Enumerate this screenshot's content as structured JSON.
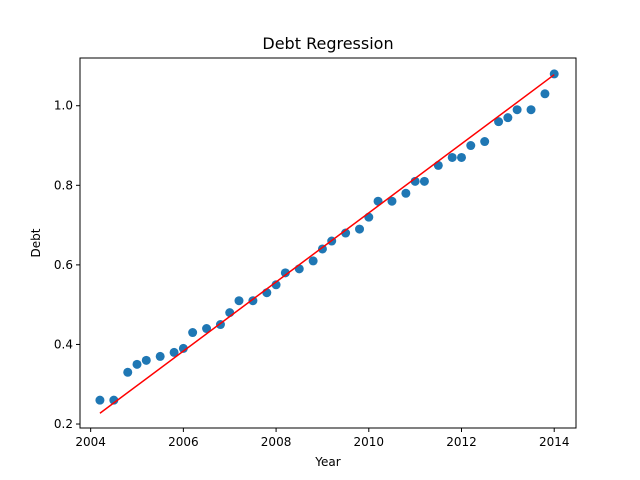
{
  "chart_data": {
    "type": "scatter",
    "title": "Debt Regression",
    "xlabel": "Year",
    "ylabel": "Debt",
    "xlim": [
      2003.77,
      2014.47
    ],
    "ylim": [
      0.19,
      1.12
    ],
    "xticks": [
      2004,
      2006,
      2008,
      2010,
      2012,
      2014
    ],
    "yticks": [
      0.2,
      0.4,
      0.6,
      0.8,
      1.0
    ],
    "xtick_labels": [
      "2004",
      "2006",
      "2008",
      "2010",
      "2012",
      "2014"
    ],
    "ytick_labels": [
      "0.2",
      "0.4",
      "0.6",
      "0.8",
      "1.0"
    ],
    "grid": false,
    "points": {
      "color": "#1f77b4",
      "x": [
        2004.2,
        2004.5,
        2004.8,
        2005.0,
        2005.2,
        2005.5,
        2005.8,
        2006.0,
        2006.2,
        2006.5,
        2006.8,
        2007.0,
        2007.2,
        2007.5,
        2007.8,
        2008.0,
        2008.2,
        2008.5,
        2008.8,
        2009.0,
        2009.2,
        2009.5,
        2009.8,
        2010.0,
        2010.2,
        2010.5,
        2010.8,
        2011.0,
        2011.2,
        2011.5,
        2011.8,
        2012.0,
        2012.2,
        2012.5,
        2012.8,
        2013.0,
        2013.2,
        2013.5,
        2013.8,
        2014.0
      ],
      "y": [
        0.26,
        0.26,
        0.33,
        0.35,
        0.36,
        0.37,
        0.38,
        0.39,
        0.43,
        0.44,
        0.45,
        0.48,
        0.51,
        0.51,
        0.53,
        0.55,
        0.58,
        0.59,
        0.61,
        0.64,
        0.66,
        0.68,
        0.69,
        0.72,
        0.76,
        0.76,
        0.78,
        0.81,
        0.81,
        0.85,
        0.87,
        0.87,
        0.9,
        0.91,
        0.96,
        0.97,
        0.99,
        0.99,
        1.03,
        1.08
      ]
    },
    "regression_line": {
      "color": "#ff0000",
      "x": [
        2004.2,
        2014.0
      ],
      "y": [
        0.227,
        1.078
      ]
    }
  }
}
